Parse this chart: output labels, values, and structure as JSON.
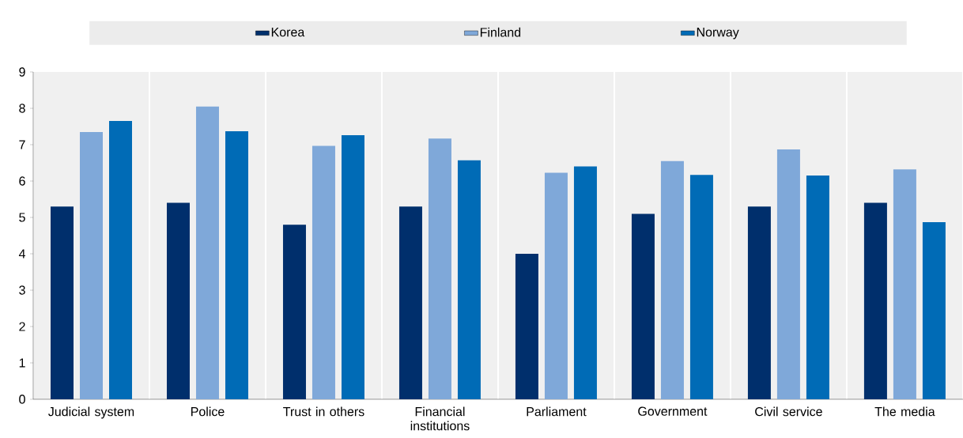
{
  "chart_data": {
    "type": "bar",
    "categories": [
      "Judicial system",
      "Police",
      "Trust in others",
      "Financial institutions",
      "Parliament",
      "Government",
      "Civil service",
      "The media"
    ],
    "series": [
      {
        "name": "Korea",
        "color": "#002f6c",
        "values": [
          5.3,
          5.4,
          4.8,
          5.3,
          4.0,
          5.1,
          5.3,
          5.4
        ]
      },
      {
        "name": "Finland",
        "color": "#7fa8d9",
        "values": [
          7.35,
          8.05,
          6.97,
          7.17,
          6.23,
          6.55,
          6.87,
          6.32
        ]
      },
      {
        "name": "Norway",
        "color": "#006bb6",
        "values": [
          7.65,
          7.37,
          7.26,
          6.57,
          6.4,
          6.17,
          6.15,
          4.87
        ]
      }
    ],
    "ylim": [
      0,
      9
    ],
    "yticks": [
      0,
      1,
      2,
      3,
      4,
      5,
      6,
      7,
      8,
      9
    ],
    "grid": "x",
    "legend": "top"
  }
}
